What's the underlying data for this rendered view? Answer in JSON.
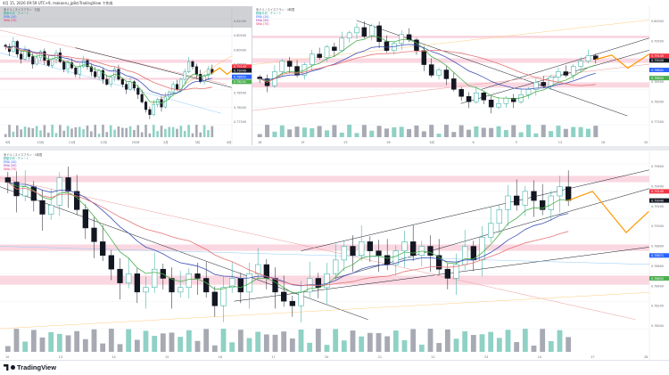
{
  "header": {
    "status": "4月 15, 2026 09:59 UTC+9, makaeru_jp8のTradingView で作成"
  },
  "panels": [
    {
      "title": "米ドル / スイスフラン · 日足",
      "timeframe": "1D"
    },
    {
      "title": "米ドル / スイスフラン · 4時間",
      "timeframe": "4h"
    },
    {
      "title": "米ドル / スイスフラン · 1時間",
      "timeframe": "1h"
    }
  ],
  "legend": {
    "ma_label": "移動平均 · チャート",
    "ema1": "EMA (20)",
    "ema2": "EMA (50)",
    "sma": "SMA (75)"
  },
  "price_tags": {
    "p1": [
      "0.79145",
      "0.79049",
      "0.78652",
      "0.78241"
    ],
    "p2": [
      "0.79145",
      "0.79040",
      "0.78841",
      "0.78652"
    ],
    "p3": [
      "0.79145",
      "0.79040",
      "0.78871",
      "0.78652"
    ]
  },
  "axis_labels": {
    "p1": [
      "0.81000",
      "0.80500",
      "0.80000",
      "0.79500",
      "0.79000",
      "0.78500",
      "0.78000",
      "0.77500"
    ],
    "p2": [
      "0.80000",
      "0.79500",
      "0.79000",
      "0.78500",
      "0.78000",
      "0.77500"
    ],
    "p3": [
      "0.79600",
      "0.79400",
      "0.79200",
      "0.79000",
      "0.78800",
      "0.78600",
      "0.78400",
      "0.78200",
      "0.78000"
    ]
  },
  "time_labels": {
    "p1": [
      "9月",
      "10月",
      "11月",
      "12月",
      "2026",
      "2月",
      "3月",
      "4月"
    ],
    "p2": [
      "16",
      "19",
      "23",
      "26",
      "4月",
      "6",
      "9",
      "13",
      "16",
      "20"
    ],
    "p3": [
      "10",
      "13",
      "14",
      "15",
      "16",
      "17",
      "20",
      "21",
      "22",
      "23",
      "24",
      "27",
      "28"
    ]
  },
  "colors": {
    "up": "#26a69a",
    "down": "#131722",
    "ema_fast": "#4caf50",
    "ema_slow": "#3f51b5",
    "sma": "#e57373",
    "zone": "#f8c6d4",
    "forecast": "#ff9800",
    "trend": "#131722"
  },
  "footer": {
    "brand": "TradingView"
  },
  "chart_data": [
    {
      "type": "candlestick",
      "title": "米ドル / スイスフラン · 日足",
      "ylim": [
        0.77,
        0.812
      ],
      "close": [
        0.801,
        0.799,
        0.803,
        0.798,
        0.796,
        0.7995,
        0.797,
        0.794,
        0.7965,
        0.799,
        0.7955,
        0.7935,
        0.796,
        0.7985,
        0.795,
        0.792,
        0.7945,
        0.7925,
        0.79,
        0.793,
        0.7955,
        0.793,
        0.791,
        0.789,
        0.7915,
        0.788,
        0.786,
        0.789,
        0.792,
        0.788,
        0.786,
        0.784,
        0.787,
        0.7845,
        0.782,
        0.779,
        0.776,
        0.774,
        0.778,
        0.78,
        0.777,
        0.781,
        0.783,
        0.786,
        0.784,
        0.788,
        0.791,
        0.795,
        0.793,
        0.79,
        0.787,
        0.7895,
        0.792,
        0.7905
      ]
    },
    {
      "type": "candlestick",
      "title": "米ドル / スイスフラン · 4時間",
      "ylim": [
        0.773,
        0.803
      ],
      "close": [
        0.786,
        0.784,
        0.788,
        0.791,
        0.7895,
        0.787,
        0.79,
        0.793,
        0.792,
        0.795,
        0.794,
        0.7975,
        0.799,
        0.8005,
        0.798,
        0.801,
        0.7965,
        0.794,
        0.796,
        0.7985,
        0.797,
        0.794,
        0.79,
        0.787,
        0.7885,
        0.786,
        0.783,
        0.781,
        0.7795,
        0.782,
        0.78,
        0.778,
        0.779,
        0.7805,
        0.7795,
        0.7815,
        0.783,
        0.785,
        0.784,
        0.7865,
        0.788,
        0.787,
        0.7895,
        0.791,
        0.7925,
        0.7915
      ]
    },
    {
      "type": "candlestick",
      "title": "米ドル / スイスフラン · 1時間",
      "ylim": [
        0.779,
        0.797
      ],
      "close": [
        0.795,
        0.7935,
        0.7945,
        0.793,
        0.7915,
        0.7925,
        0.7955,
        0.794,
        0.792,
        0.79,
        0.7885,
        0.787,
        0.7855,
        0.784,
        0.785,
        0.783,
        0.7835,
        0.7855,
        0.7845,
        0.783,
        0.7835,
        0.785,
        0.7845,
        0.783,
        0.7815,
        0.7835,
        0.7845,
        0.783,
        0.785,
        0.786,
        0.7845,
        0.783,
        0.782,
        0.7815,
        0.783,
        0.7845,
        0.7835,
        0.785,
        0.7865,
        0.788,
        0.787,
        0.7885,
        0.7875,
        0.787,
        0.786,
        0.7875,
        0.7885,
        0.787,
        0.788,
        0.787,
        0.7855,
        0.7845,
        0.786,
        0.788,
        0.7865,
        0.789,
        0.7905,
        0.792,
        0.7935,
        0.7925,
        0.794,
        0.793,
        0.792,
        0.7935,
        0.7945,
        0.793
      ]
    }
  ]
}
